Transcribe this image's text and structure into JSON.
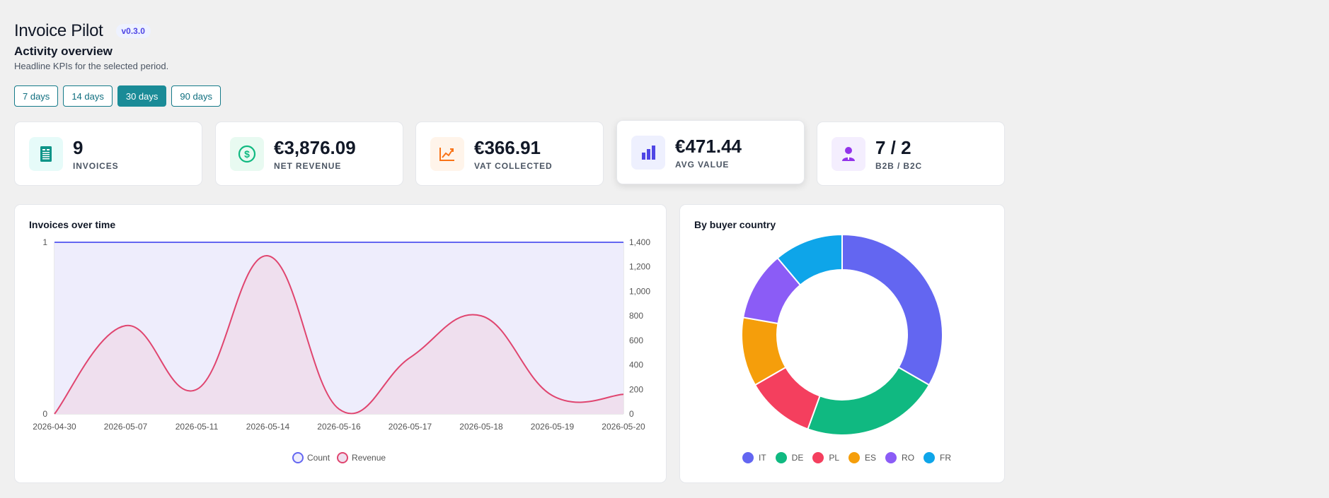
{
  "app": {
    "title": "Invoice Pilot",
    "version": "v0.3.0"
  },
  "overview": {
    "title": "Activity overview",
    "subtitle": "Headline KPIs for the selected period."
  },
  "ranges": [
    {
      "label": "7 days",
      "active": false
    },
    {
      "label": "14 days",
      "active": false
    },
    {
      "label": "30 days",
      "active": true
    },
    {
      "label": "90 days",
      "active": false
    }
  ],
  "kpis": [
    {
      "value": "9",
      "label": "INVOICES",
      "icon": "document-icon",
      "color": "#0d9488",
      "bg": "#e6fbf9"
    },
    {
      "value": "€3,876.09",
      "label": "NET REVENUE",
      "icon": "dollar-circle-icon",
      "color": "#10b981",
      "bg": "#e8faf1"
    },
    {
      "value": "€366.91",
      "label": "VAT COLLECTED",
      "icon": "trend-chart-icon",
      "color": "#f97316",
      "bg": "#fff4ea"
    },
    {
      "value": "€471.44",
      "label": "AVG VALUE",
      "icon": "bar-chart-icon",
      "color": "#4f46e5",
      "bg": "#eef0fe"
    },
    {
      "value": "7 / 2",
      "label": "B2B / B2C",
      "icon": "person-icon",
      "color": "#9333ea",
      "bg": "#f4eefe"
    }
  ],
  "line_panel": {
    "title": "Invoices over time"
  },
  "donut_panel": {
    "title": "By buyer country"
  },
  "chart_data": [
    {
      "type": "area",
      "title": "Invoices over time",
      "categories": [
        "2026-04-30",
        "2026-05-07",
        "2026-05-11",
        "2026-05-14",
        "2026-05-16",
        "2026-05-17",
        "2026-05-18",
        "2026-05-19",
        "2026-05-20"
      ],
      "y_left": {
        "min": 0,
        "max": 1,
        "ticks": [
          0,
          1
        ]
      },
      "y_right": {
        "min": 0,
        "max": 1400,
        "ticks": [
          0,
          200,
          400,
          600,
          800,
          1000,
          1200,
          1400
        ]
      },
      "series": [
        {
          "name": "Count",
          "axis": "left",
          "color": "#6366f1",
          "fill": "#eeedfc",
          "values": [
            1,
            1,
            1,
            1,
            1,
            1,
            1,
            1,
            1
          ]
        },
        {
          "name": "Revenue",
          "axis": "right",
          "color": "#e0456f",
          "fill": "#efdfee",
          "values": [
            0,
            720,
            200,
            1290,
            40,
            460,
            800,
            150,
            160
          ]
        }
      ],
      "legend_position": "bottom"
    },
    {
      "type": "pie",
      "title": "By buyer country",
      "donut": true,
      "categories": [
        "IT",
        "DE",
        "PL",
        "ES",
        "RO",
        "FR"
      ],
      "values": [
        3,
        2,
        1,
        1,
        1,
        1
      ],
      "colors": [
        "#6366f1",
        "#10b981",
        "#f43f5e",
        "#f59e0b",
        "#8b5cf6",
        "#0ea5e9"
      ],
      "legend_position": "bottom"
    }
  ]
}
